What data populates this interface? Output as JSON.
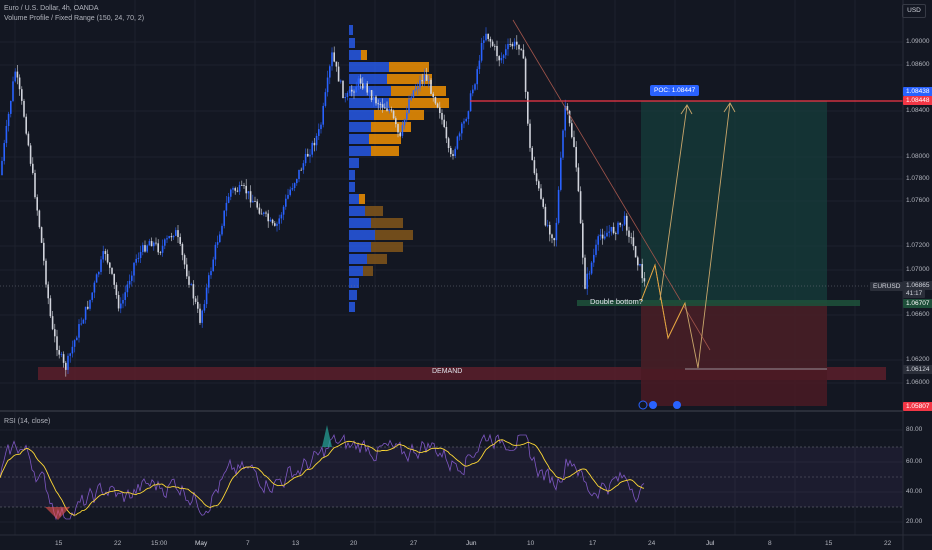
{
  "legend": {
    "title": "Euro / U.S. Dollar, 4h, OANDA",
    "indicator": "Volume Profile / Fixed Range (150, 24, 70, 2)"
  },
  "rsi_legend": "RSI (14, close)",
  "currency_button": "USD",
  "price_axis": {
    "ticks": [
      "1.09000",
      "1.08600",
      "1.08400",
      "1.08000",
      "1.07800",
      "1.07600",
      "1.07200",
      "1.07000",
      "1.06600",
      "1.06200",
      "1.06000"
    ],
    "tags": {
      "symbol": "EURUSD",
      "last_price": "1.06865",
      "countdown": "41:17",
      "poc_a": "1.08438",
      "poc_b": "1.08448",
      "double_bottom": "1.06707",
      "target_low": "1.06124",
      "stop": "1.05807"
    }
  },
  "rsi_axis": {
    "ticks": [
      "80.00",
      "60.00",
      "40.00",
      "20.00"
    ]
  },
  "time_axis": {
    "ticks": [
      "15",
      "22",
      "15:00",
      "May",
      "7",
      "13",
      "20",
      "27",
      "Jun",
      "10",
      "17",
      "24",
      "Jul",
      "8",
      "15",
      "22"
    ]
  },
  "annotations": {
    "poc_label": "POC: 1.08447",
    "double_bottom": "Double bottom?",
    "demand": "DEMAND"
  },
  "colors": {
    "background": "#131722",
    "up": "#2962ff",
    "down": "#d1d4dc",
    "resistance": "#f23645",
    "demand_zone": "#5c1e2a",
    "target_zone": "#163d3b",
    "stop_zone": "#4a1a23",
    "profile_blue": "#2962ff",
    "profile_orange": "#ff9800",
    "rsi_line": "#7e57c2",
    "rsi_ma": "#fdd835"
  }
}
